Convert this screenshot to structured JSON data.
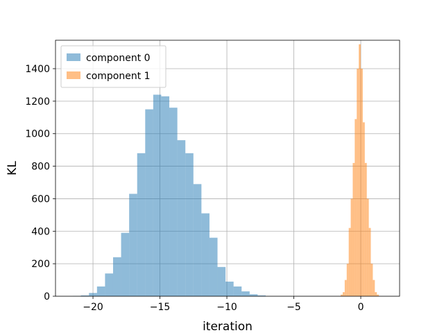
{
  "chart_data": {
    "type": "histogram",
    "title": "",
    "xlabel": "iteration",
    "ylabel": "KL",
    "xlim": [
      -22.8,
      2.9
    ],
    "ylim": [
      0,
      1575
    ],
    "xticks": [
      -20,
      -15,
      -10,
      -5,
      0
    ],
    "xtick_labels": [
      "−20",
      "−15",
      "−10",
      "−5",
      "0"
    ],
    "yticks": [
      0,
      200,
      400,
      600,
      800,
      1000,
      1200,
      1400
    ],
    "ytick_labels": [
      "0",
      "200",
      "400",
      "600",
      "800",
      "1000",
      "1200",
      "1400"
    ],
    "grid": true,
    "legend_position": "upper-left",
    "series": [
      {
        "name": "component 0",
        "color": "#1f77b4",
        "alpha": 0.5,
        "bin_edges": [
          -21.5,
          -20.9,
          -20.3,
          -19.7,
          -19.1,
          -18.5,
          -17.9,
          -17.3,
          -16.7,
          -16.1,
          -15.5,
          -14.9,
          -14.3,
          -13.7,
          -13.1,
          -12.5,
          -11.9,
          -11.3,
          -10.7,
          -10.1,
          -9.5,
          -8.9,
          -8.3,
          -7.7,
          -7.1
        ],
        "counts": [
          2,
          5,
          20,
          60,
          140,
          240,
          390,
          630,
          880,
          1150,
          1240,
          1230,
          1160,
          960,
          880,
          690,
          510,
          360,
          180,
          90,
          60,
          30,
          12,
          5
        ]
      },
      {
        "name": "component 1",
        "color": "#ff7f0e",
        "alpha": 0.5,
        "bin_edges": [
          -1.5,
          -1.35,
          -1.2,
          -1.05,
          -0.9,
          -0.75,
          -0.6,
          -0.45,
          -0.3,
          -0.15,
          0.0,
          0.15,
          0.3,
          0.45,
          0.6,
          0.75,
          0.9,
          1.05,
          1.2,
          1.35
        ],
        "counts": [
          10,
          25,
          100,
          200,
          420,
          600,
          820,
          1090,
          1400,
          1550,
          1400,
          1070,
          820,
          600,
          420,
          200,
          100,
          25,
          10
        ]
      }
    ]
  }
}
